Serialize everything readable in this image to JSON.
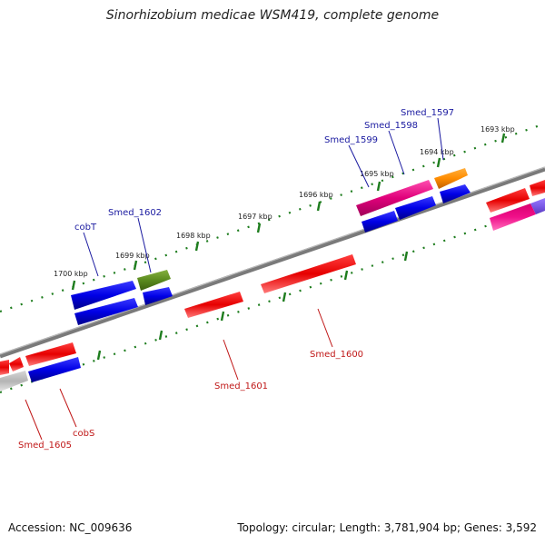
{
  "title": "Sinorhizobium medicae WSM419, complete genome",
  "footer": {
    "accession": "Accession: NC_009636",
    "summary": "Topology: circular; Length: 3,781,904 bp; Genes: 3,592"
  },
  "scale_ticks": [
    "1693 kbp",
    "1694 kbp",
    "1695 kbp",
    "1696 kbp",
    "1697 kbp",
    "1698 kbp",
    "1699 kbp",
    "1700 kbp"
  ],
  "forward_labels": [
    "Smed_1597",
    "Smed_1598",
    "Smed_1599",
    "Smed_1602",
    "cobT"
  ],
  "reverse_labels": [
    "Smed_1600",
    "Smed_1601",
    "Smed_1605",
    "cobS"
  ],
  "colors": {
    "backbone": "#808080",
    "tick": "#1e7d1e",
    "forward_gene": "#0000e6",
    "reverse_gene": "#e60000",
    "magenta_gene": "#e0007a",
    "orange_gene": "#ff8c00",
    "olive_gene": "#5a8a1e",
    "gray_gene": "#b4b4b4",
    "forward_text": "#1a1aa0",
    "reverse_text": "#c01818"
  }
}
